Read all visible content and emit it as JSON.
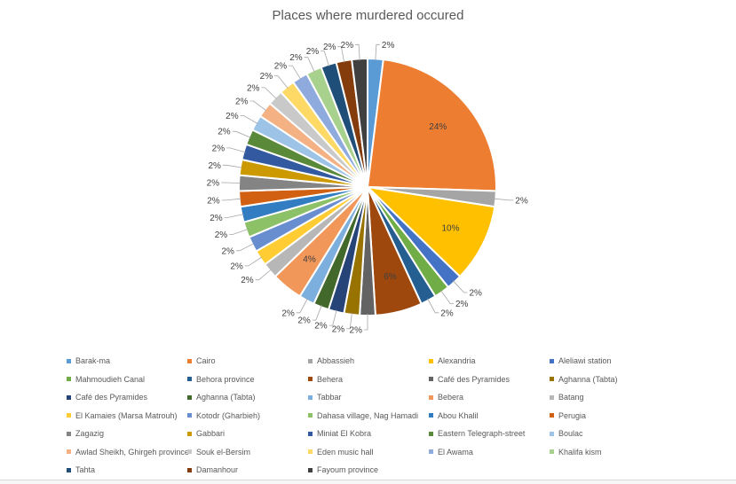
{
  "chart_data": {
    "type": "pie",
    "title": "Places where murdered occured",
    "legend_position": "bottom",
    "slices": [
      {
        "label": "Barak-ma",
        "value": 2,
        "display": "2%",
        "color": "#5B9BD5"
      },
      {
        "label": "Cairo",
        "value": 24,
        "display": "24%",
        "color": "#ED7D31"
      },
      {
        "label": "Abbassieh",
        "value": 2,
        "display": "2%",
        "color": "#A5A5A5"
      },
      {
        "label": "Alexandria",
        "value": 10,
        "display": "10%",
        "color": "#FFC000"
      },
      {
        "label": "Aleliawi station",
        "value": 2,
        "display": "2%",
        "color": "#4472C4"
      },
      {
        "label": "Mahmoudieh Canal",
        "value": 2,
        "display": "2%",
        "color": "#70AD47"
      },
      {
        "label": "Behora province",
        "value": 2,
        "display": "2%",
        "color": "#255E91"
      },
      {
        "label": "Behera",
        "value": 6,
        "display": "6%",
        "color": "#9E480E"
      },
      {
        "label": "Café des Pyramides",
        "value": 2,
        "display": "2%",
        "color": "#636363"
      },
      {
        "label": "Aghanna (Tabta)",
        "value": 2,
        "display": "2%",
        "color": "#997300"
      },
      {
        "label": "Café des Pyramides",
        "value": 2,
        "display": "2%",
        "color": "#264478"
      },
      {
        "label": "Aghanna (Tabta)",
        "value": 2,
        "display": "2%",
        "color": "#43682B"
      },
      {
        "label": "Tabbar",
        "value": 2,
        "display": "2%",
        "color": "#7CAFDD"
      },
      {
        "label": "Bebera",
        "value": 4,
        "display": "4%",
        "color": "#F1975A"
      },
      {
        "label": "Batang",
        "value": 2,
        "display": "2%",
        "color": "#B7B7B7"
      },
      {
        "label": "El Kamaies (Marsa Matrouh)",
        "value": 2,
        "display": "2%",
        "color": "#FFCD33"
      },
      {
        "label": "Kotodr (Gharbieh)",
        "value": 2,
        "display": "2%",
        "color": "#698ED0"
      },
      {
        "label": "Dahasa village, Nag Hamadi",
        "value": 2,
        "display": "2%",
        "color": "#8CC168"
      },
      {
        "label": "Abou Khalil",
        "value": 2,
        "display": "2%",
        "color": "#327DC2"
      },
      {
        "label": "Perugia",
        "value": 2,
        "display": "2%",
        "color": "#D26012"
      },
      {
        "label": "Zagazig",
        "value": 2,
        "display": "2%",
        "color": "#848484"
      },
      {
        "label": "Gabbari",
        "value": 2,
        "display": "2%",
        "color": "#CC9A00"
      },
      {
        "label": "Miniat El Kobra",
        "value": 2,
        "display": "2%",
        "color": "#335AA1"
      },
      {
        "label": "Eastern Telegraph-street",
        "value": 2,
        "display": "2%",
        "color": "#5A8A39"
      },
      {
        "label": "Boulac",
        "value": 2,
        "display": "2%",
        "color": "#9DC3E6"
      },
      {
        "label": "Awlad Sheikh, Ghirgeh province",
        "value": 2,
        "display": "2%",
        "color": "#F4B183"
      },
      {
        "label": "Souk el-Bersim",
        "value": 2,
        "display": "2%",
        "color": "#C9C9C9"
      },
      {
        "label": "Eden music hall",
        "value": 2,
        "display": "2%",
        "color": "#FFD966"
      },
      {
        "label": "El Awama",
        "value": 2,
        "display": "2%",
        "color": "#8FAADC"
      },
      {
        "label": "Khalifa kism",
        "value": 2,
        "display": "2%",
        "color": "#A9D18E"
      },
      {
        "label": "Tahta",
        "value": 2,
        "display": "2%",
        "color": "#1F4E79"
      },
      {
        "label": "Damanhour",
        "value": 2,
        "display": "2%",
        "color": "#843C0C"
      },
      {
        "label": "Fayoum province",
        "value": 2,
        "display": "2%",
        "color": "#404040"
      }
    ]
  }
}
